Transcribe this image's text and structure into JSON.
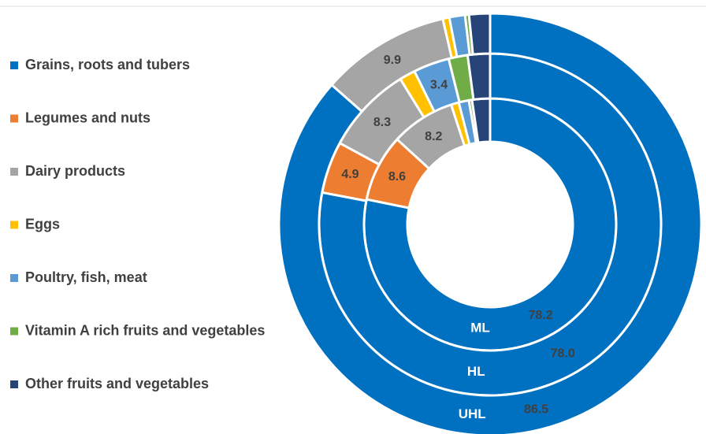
{
  "chart_data": {
    "type": "donut",
    "categories": [
      "Grains, roots and tubers",
      "Legumes and nuts",
      "Dairy products",
      "Eggs",
      "Poultry, fish, meat",
      "Vitamin A rich fruits and vegetables",
      "Other fruits and vegetables"
    ],
    "colors": [
      "#0070c0",
      "#ed7d31",
      "#a5a5a5",
      "#ffc000",
      "#5b9bd5",
      "#70ad47",
      "#264478"
    ],
    "series": [
      {
        "name": "ML",
        "values": [
          78.2,
          8.6,
          8.2,
          1.0,
          1.3,
          0.4,
          2.3
        ],
        "value_labels": [
          "78.2",
          "8.6",
          "8.2",
          null,
          null,
          null,
          null
        ]
      },
      {
        "name": "HL",
        "values": [
          78.0,
          4.9,
          8.3,
          1.5,
          3.4,
          1.8,
          2.1
        ],
        "value_labels": [
          "78.0",
          "4.9",
          "8.3",
          null,
          "3.4",
          null,
          null
        ]
      },
      {
        "name": "UHL",
        "values": [
          86.5,
          0,
          9.9,
          0.5,
          1.2,
          0.3,
          1.6
        ],
        "value_labels": [
          "86.5",
          null,
          "9.9",
          null,
          null,
          null,
          null
        ]
      }
    ]
  }
}
